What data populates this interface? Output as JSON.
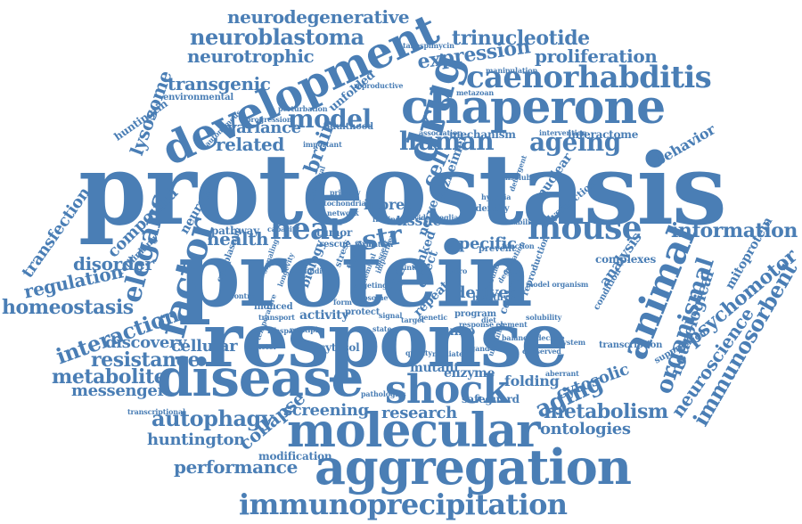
{
  "color": "#4a7eb5",
  "words": [
    "proteostasis",
    "protein",
    "response",
    "disease",
    "shock",
    "molecular",
    "aggregation",
    "chaperone",
    "development",
    "drug",
    "animal",
    "factor",
    "elegans",
    "caenorhabditis",
    "mouse",
    "heat",
    "human",
    "ageing",
    "aging",
    "model",
    "neurodegenerative",
    "neuroblastoma",
    "neurotrophic",
    "transgenic",
    "expression",
    "proliferation",
    "trinucleotide",
    "related",
    "variance",
    "lysosome",
    "brain",
    "health",
    "information",
    "organismal",
    "neurological",
    "psychomotor",
    "immunosorbent",
    "neuroscience",
    "interaction",
    "homeostasis",
    "regulation",
    "transfection",
    "disorder",
    "compound",
    "neuron",
    "resistance",
    "metabolite",
    "messenger",
    "discovery",
    "cellular",
    "autophagy",
    "huntington",
    "collapse",
    "performance",
    "immunoprecipitation",
    "screening",
    "research",
    "metabolism",
    "ontologies",
    "cytosolic",
    "folding",
    "enzyme",
    "str",
    "inbred",
    "tissue",
    "cell",
    "specific",
    "derived",
    "repeat",
    "linked",
    "analysis",
    "complexes",
    "mitoprotein",
    "behavior",
    "interactome",
    "nuclear",
    "dysfunction",
    "alzheimer",
    "huntingtin",
    "environmental",
    "unfolded",
    "reproductive",
    "tanespimycin",
    "manipulation",
    "progression",
    "autonomous",
    "adulthood",
    "mechanism",
    "association",
    "important",
    "perturbation",
    "intervention",
    "cytosol",
    "suppression",
    "transcription",
    "activity",
    "induced",
    "biology",
    "transcriptional",
    "pathologies",
    "safeguard",
    "modification",
    "mutant",
    "condition",
    "tumor",
    "pathway",
    "sumo",
    "multiple",
    "metazoan",
    "rethinking",
    "program",
    "rescue",
    "mitochondria",
    "identify",
    "network",
    "primary",
    "finding",
    "hypoxia",
    "reproduction",
    "stabilization",
    "genetic",
    "degradation",
    "rna",
    "healthy",
    "nerve",
    "effect",
    "central",
    "protect",
    "time",
    "prevent",
    "function",
    "cytoplasmic",
    "ppz",
    "formation",
    "impairment",
    "evidence",
    "detergent",
    "insoluble",
    "biological",
    "capacity",
    "targeting",
    "nascent",
    "ribosome",
    "stress",
    "signaling",
    "longevity",
    "misfolding",
    "chemical",
    "maintain",
    "glia",
    "solubility",
    "transport",
    "wound",
    "lifespan",
    "ubiquitin",
    "conserved",
    "vitro",
    "signal",
    "target",
    "form",
    "aberrant",
    "system",
    "temperature",
    "state",
    "balance",
    "model organism",
    "decline",
    "control",
    "cofactor",
    "response element",
    "diet",
    "ligand",
    "elicit",
    "mediate",
    "quality"
  ]
}
